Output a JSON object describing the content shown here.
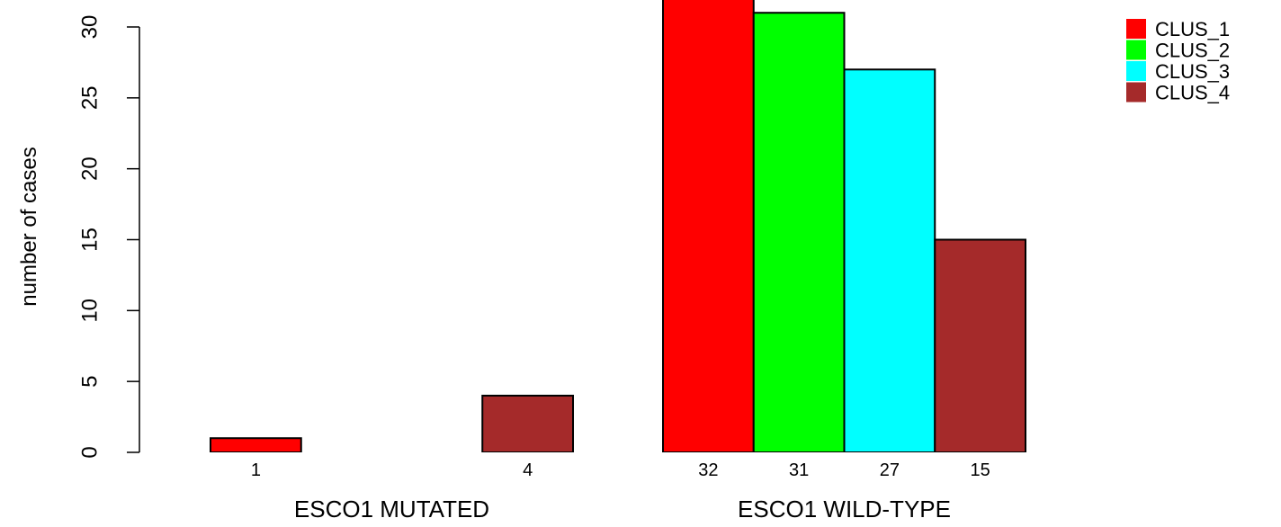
{
  "chart_data": {
    "type": "bar",
    "mode": "grouped",
    "ylabel": "number of cases",
    "ylim": [
      0,
      33
    ],
    "yticks": [
      0,
      5,
      10,
      15,
      20,
      25,
      30
    ],
    "groups": [
      "ESCO1 MUTATED",
      "ESCO1 WILD-TYPE"
    ],
    "series": [
      {
        "name": "CLUS_1",
        "color": "#ff0000",
        "values": [
          1,
          32
        ]
      },
      {
        "name": "CLUS_2",
        "color": "#00ff00",
        "values": [
          0,
          31
        ]
      },
      {
        "name": "CLUS_3",
        "color": "#00ffff",
        "values": [
          0,
          27
        ]
      },
      {
        "name": "CLUS_4",
        "color": "#a52a2a",
        "values": [
          4,
          15
        ]
      }
    ],
    "bar_labels": [
      [
        "1",
        "",
        "",
        "4"
      ],
      [
        "32",
        "31",
        "27",
        "15"
      ]
    ],
    "legend_position": "top-right",
    "grid": false
  }
}
